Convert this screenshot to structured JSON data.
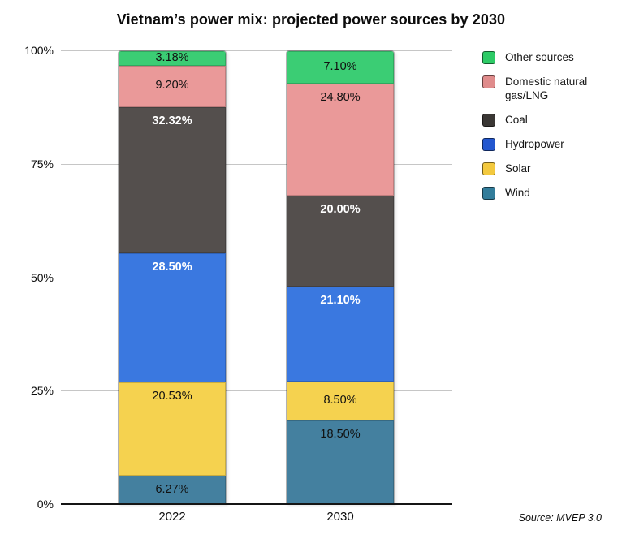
{
  "chart_data": {
    "type": "bar",
    "stacked": true,
    "title": "Vietnam’s power mix: projected power sources by 2030",
    "source": "Source: MVEP 3.0",
    "categories": [
      "2022",
      "2030"
    ],
    "ylim": [
      0,
      100
    ],
    "grid": true,
    "legend_position": "right",
    "y_ticks": [
      {
        "label": "0%",
        "value": 0
      },
      {
        "label": "25%",
        "value": 25
      },
      {
        "label": "50%",
        "value": 50
      },
      {
        "label": "75%",
        "value": 75
      },
      {
        "label": "100%",
        "value": 100
      }
    ],
    "series": [
      {
        "name": "Wind",
        "color": "#44809f",
        "legend_color": "#327d9b",
        "values": [
          6.27,
          18.5
        ],
        "labels": [
          "6.27%",
          "18.50%"
        ],
        "label_color": "#111111",
        "label_weight": "500"
      },
      {
        "name": "Solar",
        "color": "#f5d24f",
        "legend_color": "#f3c93f",
        "values": [
          20.53,
          8.5
        ],
        "labels": [
          "20.53%",
          "8.50%"
        ],
        "label_color": "#111111",
        "label_weight": "500"
      },
      {
        "name": "Hydropower",
        "color": "#3a78e0",
        "legend_color": "#2357cf",
        "values": [
          28.5,
          21.1
        ],
        "labels": [
          "28.50%",
          "21.10%"
        ],
        "label_color": "#ffffff",
        "label_weight": "700"
      },
      {
        "name": "Coal",
        "color": "#544f4d",
        "legend_color": "#3a3734",
        "values": [
          32.32,
          20.0
        ],
        "labels": [
          "32.32%",
          "20.00%"
        ],
        "label_color": "#ffffff",
        "label_weight": "700"
      },
      {
        "name": "Domestic natural gas/LNG",
        "color": "#ea9999",
        "legend_color": "#e08c8c",
        "values": [
          9.2,
          24.8
        ],
        "labels": [
          "9.20%",
          "24.80%"
        ],
        "label_color": "#111111",
        "label_weight": "500"
      },
      {
        "name": "Other sources",
        "color": "#3bcd74",
        "legend_color": "#2dcb66",
        "values": [
          3.18,
          7.1
        ],
        "labels": [
          "3.18%",
          "7.10%"
        ],
        "label_color": "#111111",
        "label_weight": "500"
      }
    ],
    "legend_order": [
      "Other sources",
      "Domestic natural gas/LNG",
      "Coal",
      "Hydropower",
      "Solar",
      "Wind"
    ]
  }
}
